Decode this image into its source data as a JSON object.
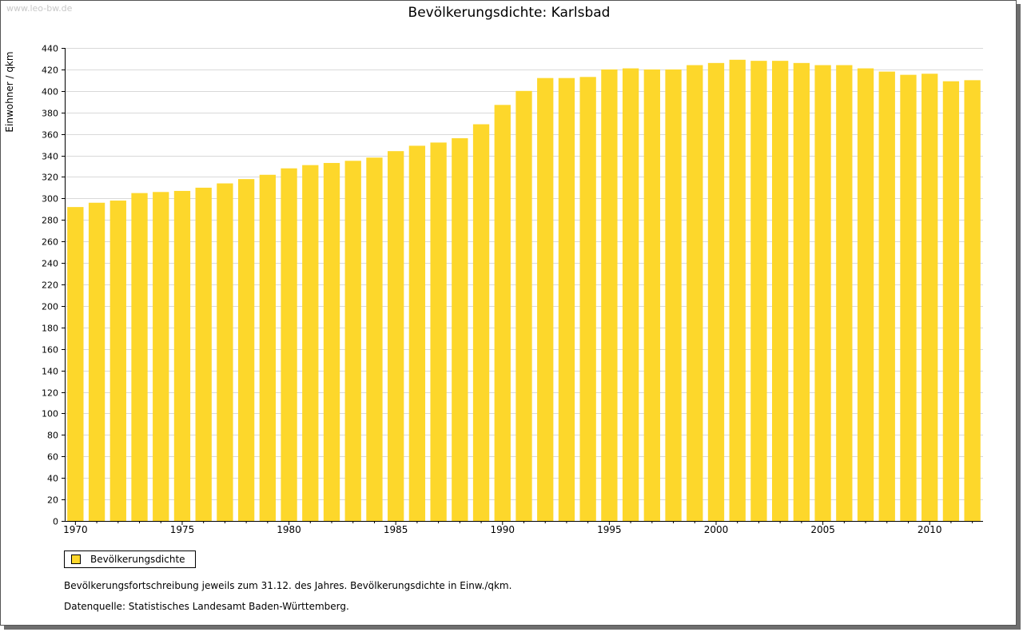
{
  "watermark": "www.leo-bw.de",
  "colors": {
    "bar": "#fdd72b",
    "grid": "#d9d9d9",
    "axis": "#000000"
  },
  "chart_data": {
    "type": "bar",
    "title": "Bevölkerungsdichte: Karlsbad",
    "xlabel": "",
    "ylabel": "Einwohner / qkm",
    "ylim": [
      0,
      440
    ],
    "ytick_step": 20,
    "xtick_labels": [
      "1970",
      "1975",
      "1980",
      "1985",
      "1990",
      "1995",
      "2000",
      "2005",
      "2010"
    ],
    "categories": [
      "1970",
      "1971",
      "1972",
      "1973",
      "1974",
      "1975",
      "1976",
      "1977",
      "1978",
      "1979",
      "1980",
      "1981",
      "1982",
      "1983",
      "1984",
      "1985",
      "1986",
      "1987",
      "1988",
      "1989",
      "1990",
      "1991",
      "1992",
      "1993",
      "1994",
      "1995",
      "1996",
      "1997",
      "1998",
      "1999",
      "2000",
      "2001",
      "2002",
      "2003",
      "2004",
      "2005",
      "2006",
      "2007",
      "2008",
      "2009",
      "2010",
      "2011",
      "2012"
    ],
    "series": [
      {
        "name": "Bevölkerungsdichte",
        "values": [
          292,
          296,
          298,
          305,
          306,
          307,
          310,
          314,
          318,
          322,
          328,
          331,
          333,
          335,
          338,
          344,
          349,
          352,
          356,
          369,
          387,
          400,
          412,
          412,
          413,
          420,
          421,
          420,
          420,
          424,
          426,
          429,
          428,
          428,
          426,
          424,
          424,
          421,
          418,
          415,
          416,
          409,
          410
        ]
      }
    ],
    "legend": [
      "Bevölkerungsdichte"
    ],
    "legend_position": "bottom-left",
    "grid": true
  },
  "notes": {
    "line1": "Bevölkerungsfortschreibung jeweils zum 31.12. des Jahres. Bevölkerungsdichte in Einw./qkm.",
    "line2": "Datenquelle: Statistisches Landesamt Baden-Württemberg."
  }
}
